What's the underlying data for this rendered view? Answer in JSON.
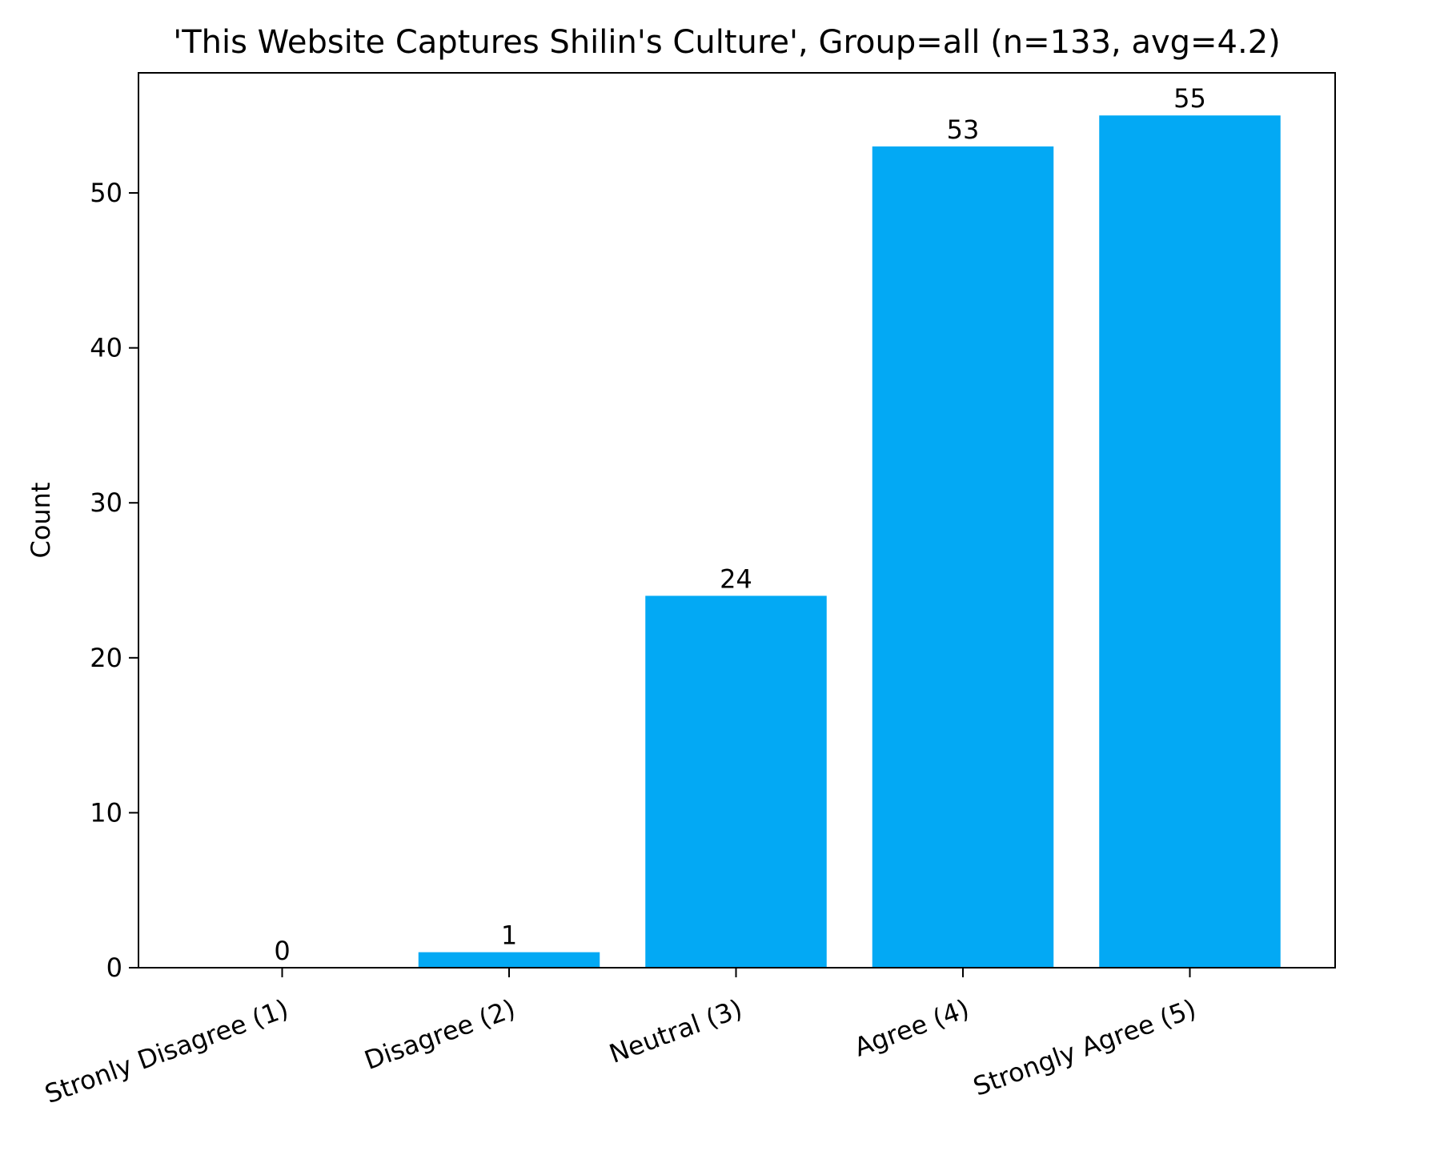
{
  "chart_data": {
    "type": "bar",
    "title": "'This Website Captures Shilin's Culture', Group=all (n=133, avg=4.2)",
    "xlabel": "",
    "ylabel": "Count",
    "categories": [
      "Stronly Disagree (1)",
      "Disagree (2)",
      "Neutral (3)",
      "Agree (4)",
      "Strongly Agree (5)"
    ],
    "values": [
      0,
      1,
      24,
      53,
      55
    ],
    "ylim": [
      0,
      57.75
    ],
    "yticks": [
      0,
      10,
      20,
      30,
      40,
      50
    ],
    "bar_color": "#03A9F4",
    "grid": false,
    "legend": false
  }
}
